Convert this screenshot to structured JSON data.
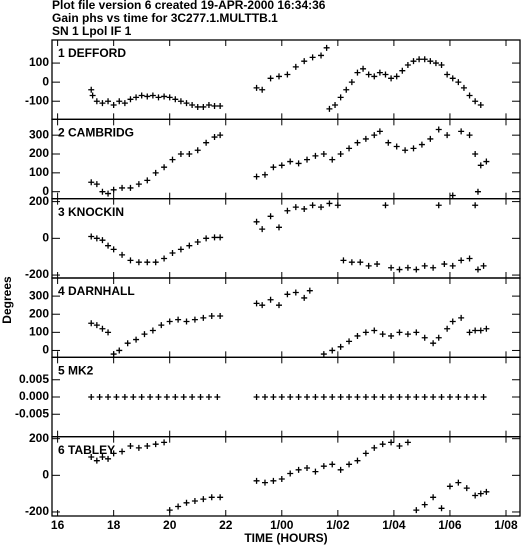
{
  "header": [
    "Plot file version 6  created 19-APR-2000 16:34:36",
    "Gain phs vs time for 3C277.1.MULTTB.1",
    "SN 1 Lpol IF 1"
  ],
  "ylabel": "Degrees",
  "xlabel": "TIME (HOURS)",
  "xlim": [
    15.8,
    32.5
  ],
  "xticks": [
    16,
    18,
    20,
    22,
    {
      "value": 24,
      "label": "1/00"
    },
    {
      "value": 26,
      "label": "1/02"
    },
    {
      "value": 28,
      "label": "1/04"
    },
    {
      "value": 30,
      "label": "1/06"
    },
    {
      "value": 32,
      "label": "1/08"
    }
  ],
  "chart_data": [
    {
      "type": "scatter",
      "title": "1 DEFFORD",
      "color": "#000000",
      "ylim": [
        -195,
        221
      ],
      "yticks": [
        100,
        0,
        -100
      ],
      "x": [
        17.2,
        17.25,
        17.4,
        17.6,
        17.8,
        18.0,
        18.2,
        18.4,
        18.6,
        18.8,
        19.0,
        19.2,
        19.4,
        19.6,
        19.8,
        20.0,
        20.2,
        20.4,
        20.6,
        20.8,
        21.0,
        21.2,
        21.4,
        21.6,
        21.8,
        23.1,
        23.3,
        23.6,
        23.9,
        24.2,
        24.5,
        24.8,
        25.1,
        25.4,
        25.6,
        25.7,
        25.9,
        26.1,
        26.3,
        26.5,
        26.7,
        26.9,
        27.1,
        27.3,
        27.5,
        27.7,
        27.9,
        28.1,
        28.3,
        28.5,
        28.7,
        28.9,
        29.1,
        29.3,
        29.5,
        29.7,
        29.9,
        30.1,
        30.3,
        30.5,
        30.7,
        30.9,
        31.1
      ],
      "values": [
        -40,
        -70,
        -100,
        -110,
        -100,
        -120,
        -100,
        -110,
        -90,
        -80,
        -70,
        -75,
        -70,
        -80,
        -75,
        -80,
        -90,
        -100,
        -110,
        -120,
        -130,
        -130,
        -120,
        -125,
        -125,
        -30,
        -40,
        20,
        30,
        40,
        80,
        110,
        130,
        140,
        180,
        -140,
        -120,
        -80,
        -40,
        0,
        50,
        70,
        40,
        30,
        50,
        40,
        20,
        30,
        60,
        90,
        110,
        120,
        120,
        110,
        100,
        90,
        40,
        20,
        0,
        -30,
        -70,
        -100,
        -120
      ]
    },
    {
      "type": "scatter",
      "title": "2 CAMBRIDG",
      "color": "#000000",
      "ylim": [
        -37,
        384
      ],
      "yticks": [
        300,
        200,
        100,
        0
      ],
      "x": [
        17.2,
        17.4,
        17.6,
        17.8,
        18.0,
        18.3,
        18.6,
        18.9,
        19.2,
        19.5,
        19.8,
        20.1,
        20.4,
        20.7,
        21.0,
        21.3,
        21.6,
        21.8,
        23.1,
        23.4,
        23.7,
        24.0,
        24.3,
        24.6,
        24.9,
        25.2,
        25.5,
        25.8,
        26.1,
        26.4,
        26.7,
        27.0,
        27.3,
        27.5,
        27.8,
        28.1,
        28.4,
        28.7,
        29.0,
        29.3,
        29.6,
        29.9,
        30.1,
        30.4,
        30.7,
        30.9,
        31.0,
        31.1,
        31.3
      ],
      "values": [
        50,
        40,
        0,
        -10,
        10,
        20,
        20,
        40,
        60,
        100,
        130,
        170,
        200,
        200,
        220,
        260,
        290,
        300,
        80,
        90,
        130,
        140,
        160,
        150,
        170,
        190,
        200,
        170,
        200,
        230,
        260,
        280,
        300,
        320,
        260,
        240,
        220,
        230,
        250,
        280,
        330,
        300,
        -20,
        320,
        300,
        200,
        0,
        140,
        160
      ]
    },
    {
      "type": "scatter",
      "title": "3 KNOCKIN",
      "color": "#000000",
      "ylim": [
        -216,
        216
      ],
      "yticks": [
        200,
        0,
        -200
      ],
      "x": [
        17.2,
        17.4,
        17.6,
        17.8,
        18.0,
        18.3,
        18.6,
        18.9,
        19.2,
        19.5,
        19.8,
        20.1,
        20.4,
        20.7,
        21.0,
        21.3,
        21.6,
        21.8,
        23.1,
        23.3,
        23.6,
        23.9,
        24.2,
        24.5,
        24.8,
        25.1,
        25.4,
        25.7,
        26.0,
        26.2,
        26.5,
        26.8,
        27.1,
        27.4,
        27.7,
        27.9,
        28.2,
        28.5,
        28.8,
        29.1,
        29.4,
        29.6,
        29.8,
        30.1,
        30.4,
        30.7,
        30.9,
        31.0,
        31.2
      ],
      "values": [
        10,
        0,
        -10,
        -40,
        -60,
        -90,
        -120,
        -130,
        -130,
        -130,
        -110,
        -80,
        -60,
        -40,
        -20,
        0,
        5,
        5,
        90,
        50,
        120,
        60,
        150,
        170,
        160,
        180,
        170,
        190,
        180,
        -120,
        -130,
        -130,
        -150,
        -140,
        180,
        -160,
        -170,
        -160,
        -170,
        -150,
        -160,
        180,
        -140,
        -150,
        -120,
        -110,
        180,
        -170,
        -150
      ]
    },
    {
      "type": "scatter",
      "title": "4 DARNHALL",
      "color": "#000000",
      "ylim": [
        -38,
        400
      ],
      "yticks": [
        300,
        200,
        100,
        0
      ],
      "x": [
        17.2,
        17.4,
        17.6,
        17.8,
        18.0,
        18.2,
        18.5,
        18.8,
        19.1,
        19.4,
        19.7,
        20.0,
        20.3,
        20.6,
        20.9,
        21.2,
        21.5,
        21.8,
        23.1,
        23.3,
        23.6,
        23.9,
        24.2,
        24.5,
        24.8,
        25.0,
        25.5,
        25.8,
        26.1,
        26.4,
        26.7,
        27.0,
        27.3,
        27.6,
        27.9,
        28.2,
        28.5,
        28.8,
        29.1,
        29.4,
        29.6,
        29.9,
        30.1,
        30.4,
        30.7,
        30.9,
        31.1,
        31.3
      ],
      "values": [
        150,
        140,
        120,
        100,
        -20,
        0,
        40,
        60,
        90,
        110,
        140,
        160,
        170,
        160,
        170,
        180,
        190,
        190,
        260,
        250,
        280,
        250,
        310,
        320,
        290,
        330,
        -20,
        0,
        20,
        50,
        80,
        100,
        110,
        90,
        80,
        100,
        90,
        100,
        70,
        40,
        70,
        120,
        160,
        180,
        100,
        110,
        110,
        120
      ]
    },
    {
      "type": "scatter",
      "title": "5 MK2",
      "color": "#000000",
      "ylim": [
        -0.0115,
        0.0115
      ],
      "yticks": [
        0.005,
        {
          "value": 0,
          "label": "0.000"
        },
        -0.005
      ],
      "x": [
        17.2,
        17.5,
        17.8,
        18.1,
        18.4,
        18.7,
        19.0,
        19.3,
        19.6,
        19.9,
        20.2,
        20.5,
        20.8,
        21.1,
        21.4,
        21.7,
        23.1,
        23.4,
        23.7,
        24.0,
        24.3,
        24.6,
        24.9,
        25.2,
        25.5,
        25.8,
        26.1,
        26.4,
        26.7,
        27.0,
        27.3,
        27.6,
        27.9,
        28.2,
        28.5,
        28.8,
        29.1,
        29.4,
        29.7,
        30.0,
        30.3,
        30.6,
        30.9,
        31.2
      ],
      "values": [
        0,
        0,
        0,
        0,
        0,
        0,
        0,
        0,
        0,
        0,
        0,
        0,
        0,
        0,
        0,
        0,
        0,
        0,
        0,
        0,
        0,
        0,
        0,
        0,
        0,
        0,
        0,
        0,
        0,
        0,
        0,
        0,
        0,
        0,
        0,
        0,
        0,
        0,
        0,
        0,
        0,
        0,
        0,
        0
      ]
    },
    {
      "type": "scatter",
      "title": "6 TABLEY",
      "color": "#000000",
      "ylim": [
        -222,
        211
      ],
      "yticks": [
        200,
        0,
        -200
      ],
      "x": [
        17.2,
        17.4,
        17.6,
        17.8,
        18.0,
        18.3,
        18.6,
        18.9,
        19.2,
        19.5,
        19.8,
        20.0,
        20.3,
        20.6,
        20.9,
        21.2,
        21.5,
        21.8,
        23.1,
        23.4,
        23.7,
        24.0,
        24.3,
        24.6,
        24.9,
        25.2,
        25.5,
        25.8,
        26.1,
        26.4,
        26.7,
        27.0,
        27.3,
        27.6,
        27.9,
        28.2,
        28.5,
        28.8,
        29.1,
        29.4,
        29.7,
        30.0,
        30.3,
        30.6,
        30.9,
        31.1,
        31.3
      ],
      "values": [
        100,
        80,
        100,
        90,
        120,
        130,
        160,
        150,
        160,
        170,
        180,
        -190,
        -170,
        -150,
        -140,
        -130,
        -120,
        -120,
        -30,
        -40,
        -30,
        -20,
        10,
        30,
        40,
        20,
        50,
        60,
        30,
        60,
        80,
        120,
        150,
        170,
        180,
        160,
        180,
        -190,
        -160,
        -120,
        -180,
        -60,
        -40,
        -70,
        -110,
        -100,
        -90
      ]
    }
  ]
}
